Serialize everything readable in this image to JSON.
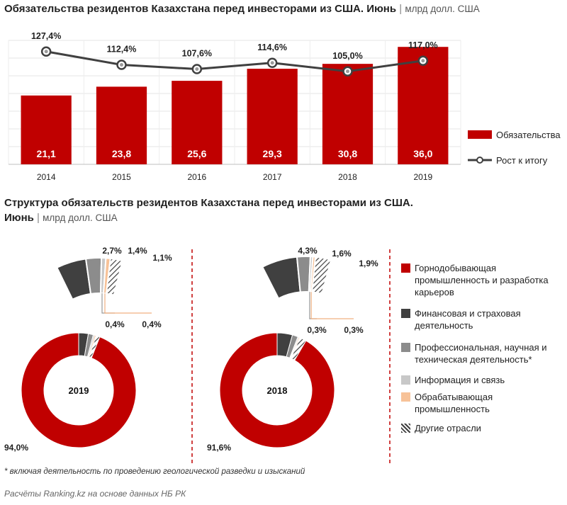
{
  "header": {
    "title_bold": "Обязательства  резидентов Казахстана перед инвесторами из США.  Июнь",
    "title_sep": "|",
    "title_unit": "млрд долл. США"
  },
  "section2": {
    "title_line1": "Структура обязательств резидентов Казахстана перед инвесторами из США.",
    "title_line2": "Июнь",
    "title_sep": "|",
    "title_unit": "млрд долл. США"
  },
  "colors": {
    "red": "#c00000",
    "dark": "#404040",
    "gray": "#8c8c8c",
    "light_gray": "#c8c8c8",
    "peach": "#f7c298",
    "line": "#404040"
  },
  "chart_data": [
    {
      "type": "bar",
      "title": "Обязательства  резидентов Казахстана перед инвесторами из США.  Июнь",
      "categories": [
        "2014",
        "2015",
        "2016",
        "2017",
        "2018",
        "2019"
      ],
      "series": [
        {
          "name": "Обязательства",
          "kind": "bar",
          "values": [
            21.1,
            23.8,
            25.6,
            29.3,
            30.8,
            36.0
          ],
          "labels": [
            "21,1",
            "23,8",
            "25,6",
            "29,3",
            "30,8",
            "36,0"
          ]
        },
        {
          "name": "Рост к итогу",
          "kind": "line",
          "values": [
            127.4,
            112.4,
            107.6,
            114.6,
            105.0,
            117.0
          ],
          "labels": [
            "127,4%",
            "112,4%",
            "107,6%",
            "114,6%",
            "105,0%",
            "117,0%"
          ]
        }
      ],
      "ylim": [
        0,
        38
      ],
      "ylim_secondary": [
        0,
        140
      ],
      "grid": true,
      "legend": "right"
    },
    {
      "type": "pie",
      "title": "2019",
      "categories": [
        "Горнодобывающая промышленность и разработка карьеров",
        "Финансовая и страховая деятельность",
        "Профессиональная, научная и техническая деятельность*",
        "Информация и связь",
        "Обрабатывающая промышленность",
        "Другие отрасли"
      ],
      "values": [
        94.0,
        2.7,
        1.4,
        0.4,
        0.4,
        1.1
      ],
      "labels": [
        "94,0%",
        "2,7%",
        "1,4%",
        "0,4%",
        "0,4%",
        "1,1%"
      ]
    },
    {
      "type": "pie",
      "title": "2018",
      "categories": [
        "Горнодобывающая промышленность и разработка карьеров",
        "Финансовая и страховая деятельность",
        "Профессиональная, научная и техническая деятельность*",
        "Информация и связь",
        "Обрабатывающая промышленность",
        "Другие отрасли"
      ],
      "values": [
        91.6,
        4.3,
        1.6,
        0.3,
        0.3,
        1.9
      ],
      "labels": [
        "91,6%",
        "4,3%",
        "1,6%",
        "0,3%",
        "0,3%",
        "1,9%"
      ]
    }
  ],
  "legend1": {
    "bar_label": "Обязательства",
    "line_label": "Рост к итогу"
  },
  "legend2": {
    "items": [
      {
        "label": "Горнодобывающая промышленность и разработка карьеров",
        "color": "#c00000",
        "pattern": "solid"
      },
      {
        "label": "Финансовая и страховая деятельность",
        "color": "#404040",
        "pattern": "solid"
      },
      {
        "label": "Профессиональная, научная и техническая деятельность*",
        "color": "#8c8c8c",
        "pattern": "solid"
      },
      {
        "label": "Информация и связь",
        "color": "#c8c8c8",
        "pattern": "solid"
      },
      {
        "label": "Обрабатывающая промышленность",
        "color": "#f7c298",
        "pattern": "solid"
      },
      {
        "label": "Другие отрасли",
        "color": "#404040",
        "pattern": "hatch"
      }
    ]
  },
  "footer": {
    "note": "* включая деятельность по проведению геологической разведки и изысканий",
    "source": "Расчёты Ranking.kz на основе данных НБ РК"
  }
}
